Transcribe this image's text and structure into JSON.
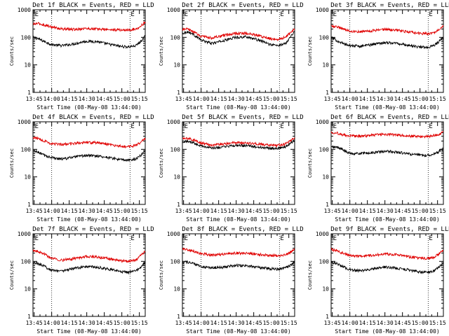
{
  "figure": {
    "start_time_label": "Start Time (08-May-08 13:44:00)",
    "ylabel": "Counts/sec",
    "marker_label": "E",
    "x_tick_labels": [
      "13:45",
      "14:00",
      "14:15",
      "14:30",
      "14:45",
      "15:00",
      "15:15"
    ]
  },
  "colors": {
    "events": "#000000",
    "lld": "#e00000"
  },
  "chart_data": [
    {
      "type": "line",
      "title": "Det 1f BLACK = Events, RED = LLD",
      "xlabel": "Start Time (08-May-08 13:44:00)",
      "ylabel": "Counts/sec",
      "yscale": "log",
      "ylim": [
        1,
        1000
      ],
      "x_unit": "minutes after 13:44:00",
      "xlim": [
        0,
        96
      ],
      "y_tick_labels": [
        "1",
        "10",
        "100",
        "1000"
      ],
      "x_tick_labels": [
        "13:45",
        "14:00",
        "14:15",
        "14:30",
        "14:45",
        "15:00",
        "15:15"
      ],
      "markers_x": [
        1,
        83
      ],
      "dotted_lines_x": [
        16,
        83
      ],
      "series": [
        {
          "name": "Events",
          "x": [
            0,
            4,
            10,
            16,
            25,
            35,
            45,
            55,
            65,
            75,
            82,
            88,
            92,
            96
          ],
          "y": [
            100,
            90,
            70,
            55,
            50,
            58,
            72,
            70,
            56,
            47,
            45,
            50,
            70,
            110
          ]
        },
        {
          "name": "LLD",
          "x": [
            0,
            4,
            10,
            16,
            25,
            35,
            45,
            55,
            65,
            75,
            82,
            88,
            92,
            96
          ],
          "y": [
            300,
            320,
            280,
            240,
            200,
            195,
            210,
            200,
            190,
            185,
            185,
            200,
            260,
            350
          ]
        }
      ]
    },
    {
      "type": "line",
      "title": "Det 2f BLACK = Events, RED = LLD",
      "xlabel": "Start Time (08-May-08 13:44:00)",
      "ylabel": "Counts/sec",
      "yscale": "log",
      "ylim": [
        1,
        1000
      ],
      "x_unit": "minutes after 13:44:00",
      "xlim": [
        0,
        96
      ],
      "y_tick_labels": [
        "1",
        "10",
        "100",
        "1000"
      ],
      "x_tick_labels": [
        "13:45",
        "14:00",
        "14:15",
        "14:30",
        "14:45",
        "15:00",
        "15:15"
      ],
      "markers_x": [
        1,
        83
      ],
      "dotted_lines_x": [
        16,
        83
      ],
      "series": [
        {
          "name": "Events",
          "x": [
            0,
            4,
            8,
            16,
            25,
            35,
            45,
            55,
            65,
            75,
            82,
            88,
            92,
            96
          ],
          "y": [
            140,
            160,
            140,
            80,
            60,
            75,
            100,
            105,
            80,
            55,
            50,
            60,
            100,
            170
          ]
        },
        {
          "name": "LLD",
          "x": [
            0,
            4,
            8,
            16,
            25,
            35,
            45,
            55,
            65,
            75,
            82,
            88,
            92,
            96
          ],
          "y": [
            190,
            200,
            170,
            110,
            95,
            115,
            140,
            140,
            115,
            90,
            85,
            100,
            140,
            200
          ]
        }
      ]
    },
    {
      "type": "line",
      "title": "Det 3f BLACK = Events, RED = LLD",
      "xlabel": "Start Time (08-May-08 13:44:00)",
      "ylabel": "Counts/sec",
      "yscale": "log",
      "ylim": [
        1,
        1000
      ],
      "x_unit": "minutes after 13:44:00",
      "xlim": [
        0,
        96
      ],
      "y_tick_labels": [
        "1",
        "10",
        "100",
        "1000"
      ],
      "x_tick_labels": [
        "13:45",
        "14:00",
        "14:15",
        "14:30",
        "14:45",
        "15:00",
        "15:15"
      ],
      "markers_x": [
        1,
        83
      ],
      "dotted_lines_x": [
        16,
        83
      ],
      "series": [
        {
          "name": "Events",
          "x": [
            0,
            4,
            10,
            16,
            25,
            35,
            45,
            55,
            65,
            75,
            82,
            88,
            92,
            96
          ],
          "y": [
            100,
            80,
            60,
            50,
            48,
            55,
            65,
            62,
            52,
            45,
            43,
            50,
            70,
            100
          ]
        },
        {
          "name": "LLD",
          "x": [
            0,
            4,
            10,
            16,
            25,
            35,
            45,
            55,
            65,
            75,
            82,
            88,
            92,
            96
          ],
          "y": [
            260,
            250,
            210,
            170,
            160,
            175,
            195,
            185,
            160,
            140,
            135,
            150,
            200,
            270
          ]
        }
      ]
    },
    {
      "type": "line",
      "title": "Det 4f BLACK = Events, RED = LLD",
      "xlabel": "Start Time (08-May-08 13:44:00)",
      "ylabel": "Counts/sec",
      "yscale": "log",
      "ylim": [
        1,
        1000
      ],
      "x_unit": "minutes after 13:44:00",
      "xlim": [
        0,
        96
      ],
      "y_tick_labels": [
        "1",
        "10",
        "100",
        "1000"
      ],
      "x_tick_labels": [
        "13:45",
        "14:00",
        "14:15",
        "14:30",
        "14:45",
        "15:00",
        "15:15"
      ],
      "markers_x": [
        1,
        83
      ],
      "dotted_lines_x": [
        16,
        83
      ],
      "series": [
        {
          "name": "Events",
          "x": [
            0,
            4,
            10,
            16,
            25,
            35,
            45,
            55,
            65,
            75,
            82,
            88,
            92,
            96
          ],
          "y": [
            90,
            80,
            60,
            50,
            45,
            52,
            60,
            58,
            50,
            42,
            40,
            45,
            60,
            95
          ]
        },
        {
          "name": "LLD",
          "x": [
            0,
            4,
            10,
            16,
            25,
            35,
            45,
            55,
            65,
            75,
            82,
            88,
            92,
            96
          ],
          "y": [
            260,
            250,
            200,
            160,
            150,
            165,
            180,
            175,
            150,
            130,
            125,
            140,
            180,
            250
          ]
        }
      ]
    },
    {
      "type": "line",
      "title": "Det 5f BLACK = Events, RED = LLD",
      "xlabel": "Start Time (08-May-08 13:44:00)",
      "ylabel": "Counts/sec",
      "yscale": "log",
      "ylim": [
        1,
        1000
      ],
      "x_unit": "minutes after 13:44:00",
      "xlim": [
        0,
        96
      ],
      "y_tick_labels": [
        "1",
        "10",
        "100",
        "1000"
      ],
      "x_tick_labels": [
        "13:45",
        "14:00",
        "14:15",
        "14:30",
        "14:45",
        "15:00",
        "15:15"
      ],
      "markers_x": [
        1,
        83
      ],
      "dotted_lines_x": [
        16,
        83
      ],
      "series": [
        {
          "name": "Events",
          "x": [
            0,
            4,
            10,
            16,
            25,
            35,
            45,
            55,
            65,
            75,
            82,
            88,
            92,
            96
          ],
          "y": [
            190,
            195,
            175,
            135,
            110,
            120,
            140,
            135,
            120,
            110,
            110,
            125,
            160,
            220
          ]
        },
        {
          "name": "LLD",
          "x": [
            0,
            4,
            10,
            16,
            25,
            35,
            45,
            55,
            65,
            75,
            82,
            88,
            92,
            96
          ],
          "y": [
            240,
            250,
            220,
            170,
            145,
            155,
            175,
            170,
            155,
            140,
            140,
            155,
            200,
            270
          ]
        }
      ]
    },
    {
      "type": "line",
      "title": "Det 6f BLACK = Events, RED = LLD",
      "xlabel": "Start Time (08-May-08 13:44:00)",
      "ylabel": "Counts/sec",
      "yscale": "log",
      "ylim": [
        1,
        1000
      ],
      "x_unit": "minutes after 13:44:00",
      "xlim": [
        0,
        96
      ],
      "y_tick_labels": [
        "1",
        "10",
        "100",
        "1000"
      ],
      "x_tick_labels": [
        "13:45",
        "14:00",
        "14:15",
        "14:30",
        "14:45",
        "15:00",
        "15:15"
      ],
      "markers_x": [
        1,
        83
      ],
      "dotted_lines_x": [
        16,
        83
      ],
      "series": [
        {
          "name": "Events",
          "x": [
            0,
            4,
            8,
            14,
            20,
            30,
            40,
            50,
            60,
            70,
            80,
            86,
            92,
            96
          ],
          "y": [
            120,
            120,
            110,
            75,
            70,
            72,
            80,
            85,
            75,
            65,
            60,
            65,
            80,
            110
          ]
        },
        {
          "name": "LLD",
          "x": [
            0,
            4,
            8,
            14,
            20,
            30,
            40,
            50,
            60,
            70,
            80,
            86,
            92,
            96
          ],
          "y": [
            420,
            400,
            360,
            310,
            300,
            310,
            340,
            350,
            320,
            300,
            290,
            310,
            350,
            420
          ]
        }
      ]
    },
    {
      "type": "line",
      "title": "Det 7f BLACK = Events, RED = LLD",
      "xlabel": "Start Time (08-May-08 13:44:00)",
      "ylabel": "Counts/sec",
      "yscale": "log",
      "ylim": [
        1,
        1000
      ],
      "x_unit": "minutes after 13:44:00",
      "xlim": [
        0,
        96
      ],
      "y_tick_labels": [
        "1",
        "10",
        "100",
        "1000"
      ],
      "x_tick_labels": [
        "13:45",
        "14:00",
        "14:15",
        "14:30",
        "14:45",
        "15:00",
        "15:15"
      ],
      "markers_x": [
        1,
        83
      ],
      "dotted_lines_x": [
        16,
        83
      ],
      "series": [
        {
          "name": "Events",
          "x": [
            0,
            4,
            10,
            16,
            25,
            35,
            45,
            55,
            65,
            75,
            82,
            88,
            92,
            96
          ],
          "y": [
            90,
            85,
            65,
            48,
            45,
            55,
            65,
            62,
            52,
            42,
            40,
            45,
            60,
            95
          ]
        },
        {
          "name": "LLD",
          "x": [
            0,
            4,
            10,
            16,
            25,
            35,
            45,
            55,
            65,
            75,
            82,
            88,
            92,
            96
          ],
          "y": [
            240,
            230,
            180,
            130,
            110,
            125,
            150,
            145,
            125,
            105,
            100,
            115,
            160,
            230
          ]
        }
      ]
    },
    {
      "type": "line",
      "title": "Det 8f BLACK = Events, RED = LLD",
      "xlabel": "Start Time (08-May-08 13:44:00)",
      "ylabel": "Counts/sec",
      "yscale": "log",
      "ylim": [
        1,
        1000
      ],
      "x_unit": "minutes after 13:44:00",
      "xlim": [
        0,
        96
      ],
      "y_tick_labels": [
        "1",
        "10",
        "100",
        "1000"
      ],
      "x_tick_labels": [
        "13:45",
        "14:00",
        "14:15",
        "14:30",
        "14:45",
        "15:00",
        "15:15"
      ],
      "markers_x": [
        1,
        83
      ],
      "dotted_lines_x": [
        16,
        83
      ],
      "series": [
        {
          "name": "Events",
          "x": [
            0,
            4,
            10,
            16,
            25,
            35,
            45,
            55,
            65,
            75,
            82,
            88,
            92,
            96
          ],
          "y": [
            95,
            95,
            80,
            65,
            58,
            62,
            72,
            70,
            60,
            55,
            52,
            58,
            70,
            95
          ]
        },
        {
          "name": "LLD",
          "x": [
            0,
            4,
            10,
            16,
            25,
            35,
            45,
            55,
            65,
            75,
            82,
            88,
            92,
            96
          ],
          "y": [
            280,
            270,
            230,
            190,
            170,
            180,
            200,
            195,
            180,
            165,
            160,
            175,
            210,
            270
          ]
        }
      ]
    },
    {
      "type": "line",
      "title": "Det 9f BLACK = Events, RED = LLD",
      "xlabel": "Start Time (08-May-08 13:44:00)",
      "ylabel": "Counts/sec",
      "yscale": "log",
      "ylim": [
        1,
        1000
      ],
      "x_unit": "minutes after 13:44:00",
      "xlim": [
        0,
        96
      ],
      "y_tick_labels": [
        "1",
        "10",
        "100",
        "1000"
      ],
      "x_tick_labels": [
        "13:45",
        "14:00",
        "14:15",
        "14:30",
        "14:45",
        "15:00",
        "15:15"
      ],
      "markers_x": [
        1,
        83
      ],
      "dotted_lines_x": [
        16,
        83
      ],
      "series": [
        {
          "name": "Events",
          "x": [
            0,
            4,
            10,
            16,
            25,
            35,
            45,
            55,
            65,
            75,
            82,
            88,
            92,
            96
          ],
          "y": [
            95,
            85,
            65,
            50,
            45,
            52,
            62,
            58,
            50,
            42,
            40,
            45,
            60,
            95
          ]
        },
        {
          "name": "LLD",
          "x": [
            0,
            4,
            10,
            16,
            25,
            35,
            45,
            55,
            65,
            75,
            82,
            88,
            92,
            96
          ],
          "y": [
            270,
            250,
            200,
            160,
            150,
            165,
            185,
            175,
            150,
            130,
            125,
            140,
            185,
            260
          ]
        }
      ]
    }
  ]
}
